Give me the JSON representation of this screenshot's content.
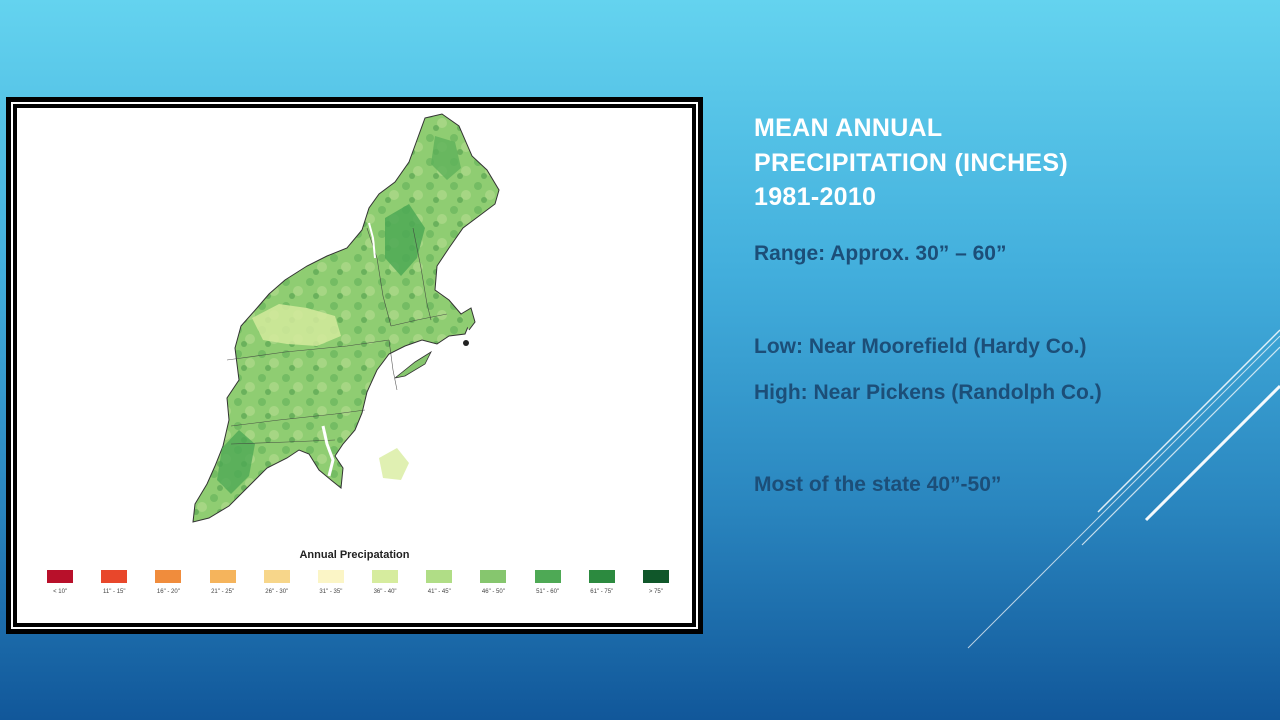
{
  "slide": {
    "title_lines": [
      "MEAN ANNUAL",
      "PRECIPITATION (INCHES)",
      "1981-2010"
    ],
    "points": {
      "range": "Range: Approx. 30” – 60”",
      "low": "Low: Near Moorefield (Hardy Co.)",
      "high": "High: Near Pickens (Randolph Co.)",
      "most": "Most of the state 40”-50”"
    }
  },
  "map": {
    "legend_title": "Annual Precipatation",
    "legend": [
      {
        "label": "< 10\"",
        "color": "#b8102a"
      },
      {
        "label": "11\" - 15\"",
        "color": "#e8472b"
      },
      {
        "label": "16\" - 20\"",
        "color": "#f08c3c"
      },
      {
        "label": "21\" - 25\"",
        "color": "#f5b45c"
      },
      {
        "label": "26\" - 30\"",
        "color": "#f7d68a"
      },
      {
        "label": "31\" - 35\"",
        "color": "#fbf5c6"
      },
      {
        "label": "36\" - 40\"",
        "color": "#d6ec9e"
      },
      {
        "label": "41\" - 45\"",
        "color": "#b0dd86"
      },
      {
        "label": "46\" - 50\"",
        "color": "#86c66e"
      },
      {
        "label": "51\" - 60\"",
        "color": "#4ea955"
      },
      {
        "label": "61\" - 75\"",
        "color": "#2c8a3f"
      },
      {
        "label": "> 75\"",
        "color": "#10572a"
      }
    ]
  }
}
